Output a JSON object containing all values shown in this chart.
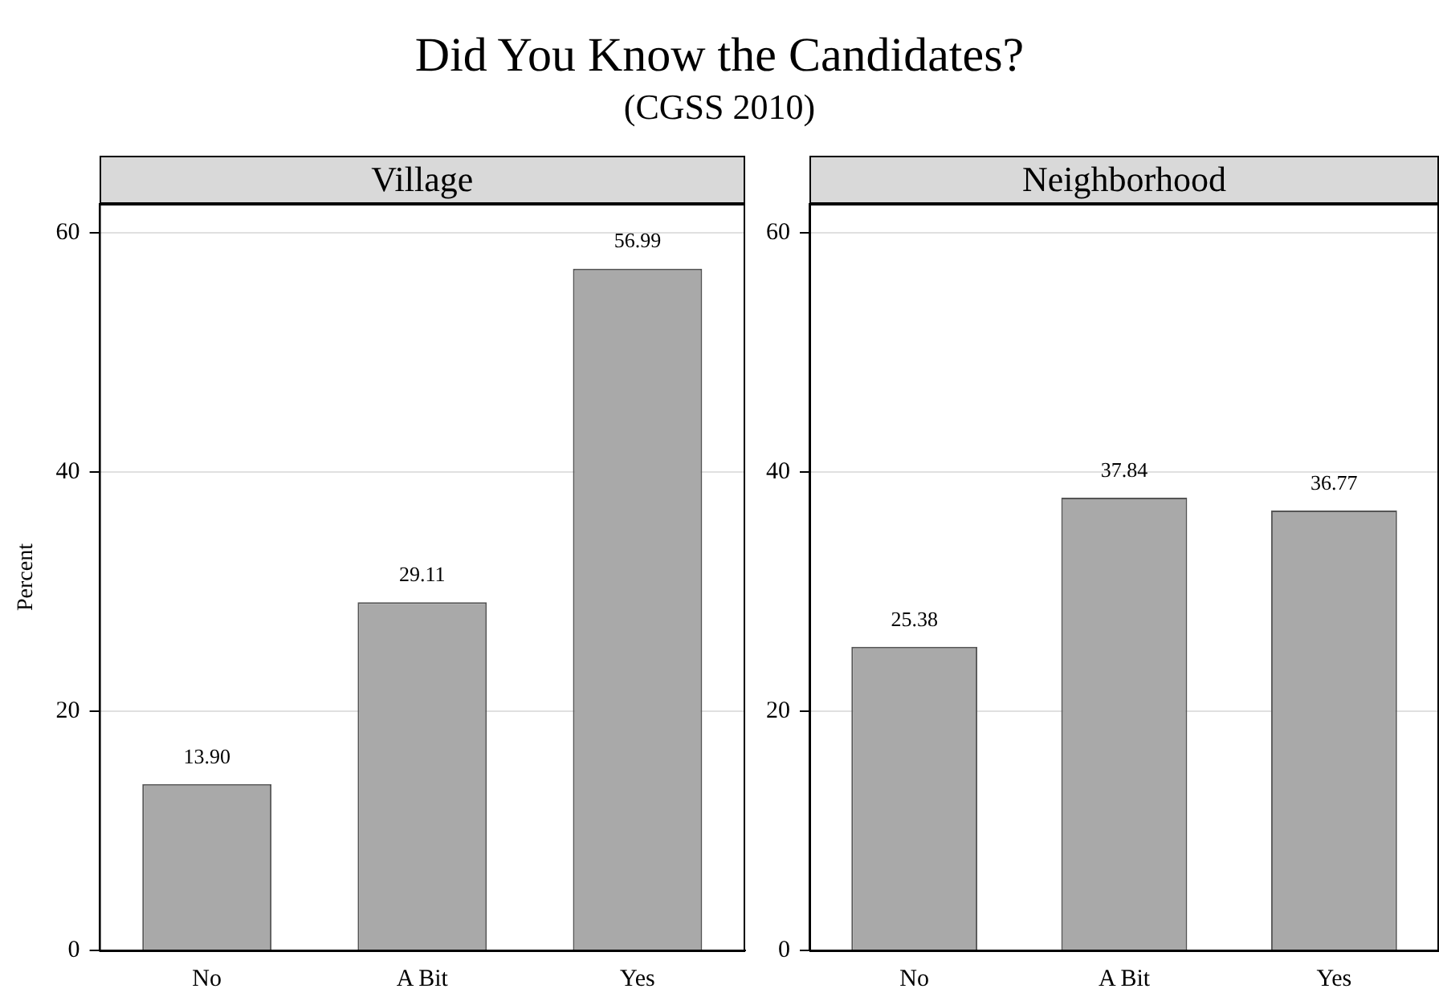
{
  "chart_data": [
    {
      "type": "bar",
      "title": "Village",
      "annotations": [
        "Did You Know the Candidates?",
        "(CGSS 2010)"
      ],
      "ylabel": "Percent",
      "categories": [
        "No",
        "A Bit",
        "Yes"
      ],
      "values": [
        13.9,
        29.11,
        56.99
      ],
      "value_labels": [
        "13.90",
        "29.11",
        "56.99"
      ],
      "color": "#a9a9a9",
      "ylim": [
        0,
        62.4
      ],
      "yticks": [
        0,
        20,
        40,
        60
      ],
      "grid": "y",
      "legend": false
    },
    {
      "type": "bar",
      "title": "Neighborhood",
      "categories": [
        "No",
        "A Bit",
        "Yes"
      ],
      "values": [
        25.38,
        37.84,
        36.77
      ],
      "value_labels": [
        "25.38",
        "37.84",
        "36.77"
      ],
      "color": "#a9a9a9",
      "ylim": [
        0,
        62.4
      ],
      "yticks": [
        0,
        20,
        40,
        60
      ],
      "grid": "y",
      "legend": false
    }
  ]
}
